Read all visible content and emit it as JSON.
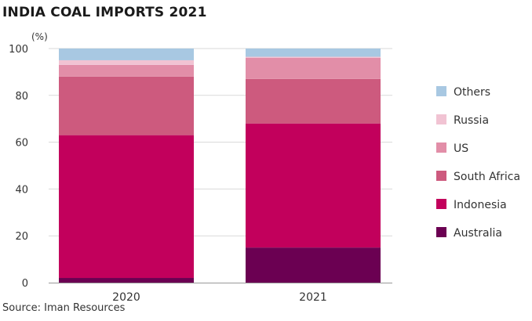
{
  "chart_data": {
    "type": "bar",
    "stacked": true,
    "title": "INDIA COAL IMPORTS 2021",
    "ylabel": "(%)",
    "ylim": [
      0,
      100
    ],
    "yticks": [
      0,
      20,
      40,
      60,
      80,
      100
    ],
    "categories": [
      "2020",
      "2021"
    ],
    "series": [
      {
        "name": "Australia",
        "values": [
          2,
          15
        ],
        "color": "#6b0052"
      },
      {
        "name": "Indonesia",
        "values": [
          61,
          53
        ],
        "color": "#c2005c"
      },
      {
        "name": "South Africa",
        "values": [
          25,
          19
        ],
        "color": "#cd5a7e"
      },
      {
        "name": "US",
        "values": [
          5,
          9
        ],
        "color": "#e28ea8"
      },
      {
        "name": "Russia",
        "values": [
          2,
          0.5
        ],
        "color": "#f1c3d3"
      },
      {
        "name": "Others",
        "values": [
          5,
          3.5
        ],
        "color": "#a8c8e2"
      }
    ],
    "legend": {
      "position": "right",
      "order": [
        "Others",
        "Russia",
        "US",
        "South Africa",
        "Indonesia",
        "Australia"
      ]
    },
    "grid": {
      "y": true,
      "x": false
    },
    "source": "Source: Iman Resources"
  }
}
